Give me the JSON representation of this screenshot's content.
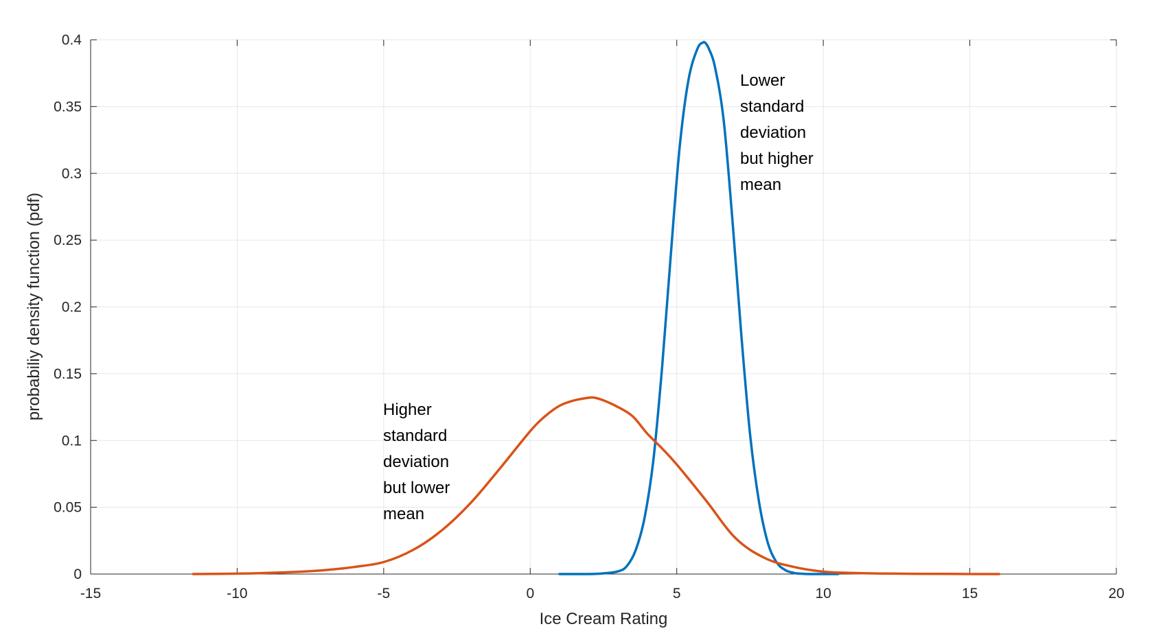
{
  "chart_data": {
    "type": "line",
    "title": "",
    "xlabel": "Ice Cream Rating",
    "ylabel": "probabiliy density function (pdf)",
    "xlim": [
      -15,
      20
    ],
    "ylim": [
      0,
      0.4
    ],
    "xticks": [
      -15,
      -10,
      -5,
      0,
      5,
      10,
      15,
      20
    ],
    "xtick_labels": [
      "-15",
      "-10",
      "-5",
      "0",
      "5",
      "10",
      "15",
      "20"
    ],
    "yticks": [
      0,
      0.05,
      0.1,
      0.15,
      0.2,
      0.25,
      0.3,
      0.35,
      0.4
    ],
    "ytick_labels": [
      "0",
      "0.05",
      "0.1",
      "0.15",
      "0.2",
      "0.25",
      "0.3",
      "0.35",
      "0.4"
    ],
    "grid": true,
    "series": [
      {
        "name": "Lower standard deviation but higher mean",
        "color": "#0072BD",
        "x": [
          1.0,
          2.0,
          2.5,
          3.0,
          3.3,
          3.6,
          3.9,
          4.2,
          4.5,
          4.8,
          5.1,
          5.4,
          5.7,
          5.9,
          6.0,
          6.1,
          6.3,
          6.6,
          6.9,
          7.2,
          7.5,
          7.8,
          8.1,
          8.4,
          8.7,
          9.0,
          9.3,
          9.6,
          10.0,
          10.5
        ],
        "y": [
          0.0,
          0.0,
          0.0005,
          0.002,
          0.006,
          0.018,
          0.042,
          0.085,
          0.155,
          0.24,
          0.32,
          0.37,
          0.393,
          0.398,
          0.397,
          0.393,
          0.38,
          0.34,
          0.265,
          0.18,
          0.105,
          0.055,
          0.024,
          0.009,
          0.003,
          0.0008,
          0.0002,
          0.0,
          0.0,
          0.0
        ]
      },
      {
        "name": "Higher standard deviation but lower mean",
        "color": "#D95319",
        "x": [
          -11.5,
          -10.0,
          -9.0,
          -8.0,
          -7.0,
          -6.0,
          -5.0,
          -4.0,
          -3.0,
          -2.0,
          -1.0,
          0.0,
          0.5,
          1.0,
          1.5,
          2.0,
          2.2,
          2.5,
          3.0,
          3.5,
          4.0,
          4.5,
          5.0,
          6.0,
          7.0,
          8.0,
          9.0,
          10.0,
          11.0,
          12.0,
          13.0,
          14.0,
          15.0,
          16.0
        ],
        "y": [
          0.0,
          0.0003,
          0.0008,
          0.0016,
          0.003,
          0.0053,
          0.009,
          0.018,
          0.033,
          0.054,
          0.08,
          0.107,
          0.118,
          0.126,
          0.13,
          0.132,
          0.132,
          0.13,
          0.125,
          0.118,
          0.105,
          0.094,
          0.082,
          0.055,
          0.027,
          0.012,
          0.0053,
          0.0018,
          0.0008,
          0.0004,
          0.0002,
          0.0001,
          0.0,
          0.0
        ]
      }
    ],
    "annotations": [
      {
        "lines": [
          "Lower",
          "standard",
          "deviation",
          "but higher",
          "mean"
        ]
      },
      {
        "lines": [
          "Higher",
          "standard",
          "deviation",
          "but lower",
          "mean"
        ]
      }
    ]
  }
}
